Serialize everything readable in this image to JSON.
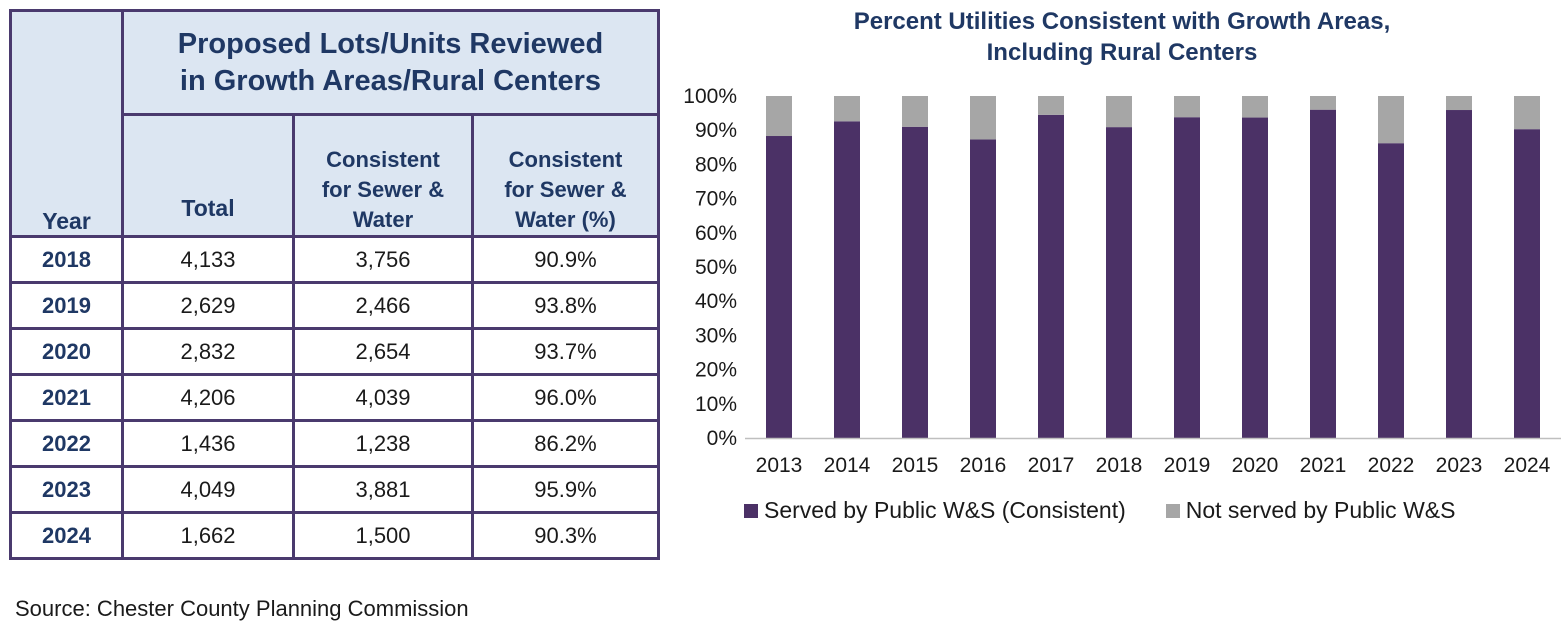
{
  "table": {
    "title_line1": "Proposed Lots/Units Reviewed",
    "title_line2": "in Growth Areas/Rural Centers",
    "headers": {
      "year": "Year",
      "total": "Total",
      "sewer_water": [
        "Consistent",
        "for Sewer &",
        "Water"
      ],
      "sewer_water_pct": [
        "Consistent",
        "for Sewer &",
        "Water (%)"
      ]
    },
    "rows": [
      {
        "year": "2018",
        "total": "4,133",
        "consistent": "3,756",
        "pct": "90.9%"
      },
      {
        "year": "2019",
        "total": "2,629",
        "consistent": "2,466",
        "pct": "93.8%"
      },
      {
        "year": "2020",
        "total": "2,832",
        "consistent": "2,654",
        "pct": "93.7%"
      },
      {
        "year": "2021",
        "total": "4,206",
        "consistent": "4,039",
        "pct": "96.0%"
      },
      {
        "year": "2022",
        "total": "1,436",
        "consistent": "1,238",
        "pct": "86.2%"
      },
      {
        "year": "2023",
        "total": "4,049",
        "consistent": "3,881",
        "pct": "95.9%"
      },
      {
        "year": "2024",
        "total": "1,662",
        "consistent": "1,500",
        "pct": "90.3%"
      }
    ]
  },
  "source_note": "Source: Chester County Planning Commission",
  "chart_data": {
    "type": "bar",
    "stacked": true,
    "title": [
      "Percent Utilities Consistent with Growth Areas,",
      "Including Rural Centers"
    ],
    "categories": [
      "2013",
      "2014",
      "2015",
      "2016",
      "2017",
      "2018",
      "2019",
      "2020",
      "2021",
      "2022",
      "2023",
      "2024"
    ],
    "series": [
      {
        "name": "Served by Public W&S (Consistent)",
        "color": "#4b3166",
        "values": [
          88.3,
          92.6,
          91.0,
          87.3,
          94.5,
          90.9,
          93.8,
          93.7,
          96.0,
          86.2,
          95.9,
          90.3
        ]
      },
      {
        "name": "Not served by Public W&S",
        "color": "#a6a6a6",
        "values": [
          11.7,
          7.4,
          9.0,
          12.7,
          5.5,
          9.1,
          6.2,
          6.3,
          4.0,
          13.8,
          4.1,
          9.7
        ]
      }
    ],
    "yticks": [
      "0%",
      "10%",
      "20%",
      "30%",
      "40%",
      "50%",
      "60%",
      "70%",
      "80%",
      "90%",
      "100%"
    ],
    "ylim": [
      0,
      100
    ],
    "legend_position": "bottom",
    "grid": false
  }
}
